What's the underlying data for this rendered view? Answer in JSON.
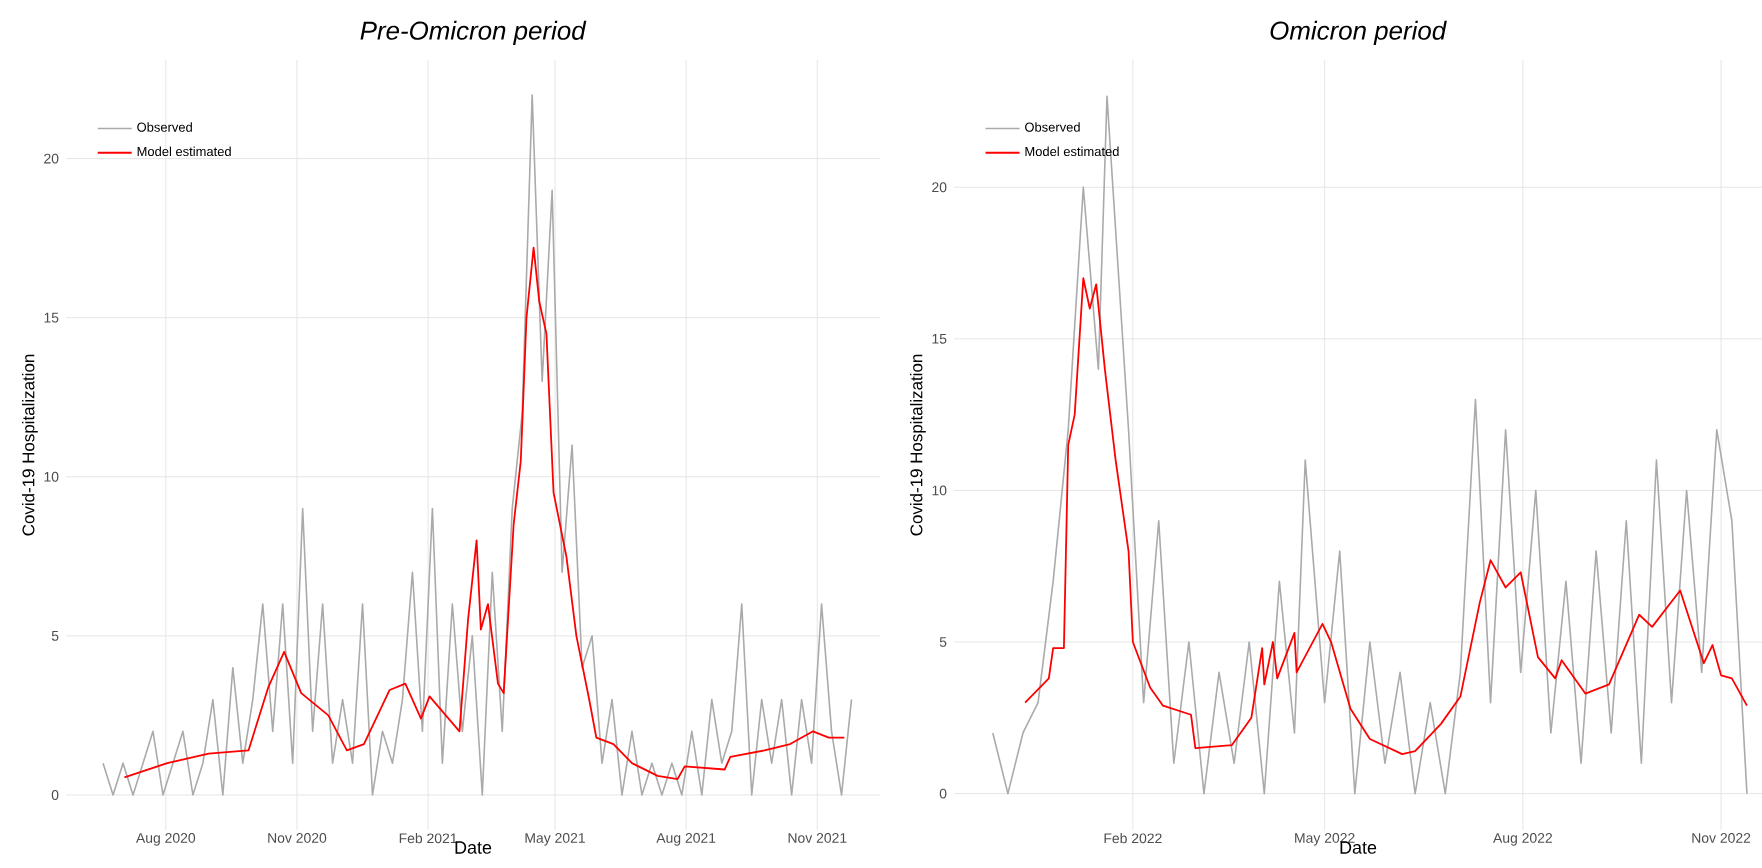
{
  "chart_data": [
    {
      "type": "line",
      "title": "*Pre-Omicron period*",
      "xlabel": "Date",
      "ylabel": "Covid-19 Hospitalization",
      "xlim": [
        "2020-05-23",
        "2021-12-15"
      ],
      "ylim": [
        -1.1,
        23.1
      ],
      "xticks": [
        {
          "value": "2020-08-01",
          "label": "Aug 2020"
        },
        {
          "value": "2020-11-01",
          "label": "Nov 2020"
        },
        {
          "value": "2021-02-01",
          "label": "Feb 2021"
        },
        {
          "value": "2021-05-01",
          "label": "May 2021"
        },
        {
          "value": "2021-08-01",
          "label": "Aug 2021"
        },
        {
          "value": "2021-11-01",
          "label": "Nov 2021"
        }
      ],
      "yticks": [
        0,
        5,
        10,
        15,
        20
      ],
      "grid": true,
      "legend": "top left",
      "series": [
        {
          "name": "Observed",
          "color": "#aaaaaa",
          "x": [
            "2020-06-18",
            "2020-06-25",
            "2020-07-02",
            "2020-07-09",
            "2020-07-16",
            "2020-07-23",
            "2020-07-30",
            "2020-08-06",
            "2020-08-13",
            "2020-08-20",
            "2020-08-27",
            "2020-09-03",
            "2020-09-10",
            "2020-09-17",
            "2020-09-24",
            "2020-10-01",
            "2020-10-08",
            "2020-10-15",
            "2020-10-22",
            "2020-10-29",
            "2020-11-05",
            "2020-11-12",
            "2020-11-19",
            "2020-11-26",
            "2020-12-03",
            "2020-12-10",
            "2020-12-17",
            "2020-12-24",
            "2020-12-31",
            "2021-01-07",
            "2021-01-14",
            "2021-01-21",
            "2021-01-28",
            "2021-02-04",
            "2021-02-11",
            "2021-02-18",
            "2021-02-25",
            "2021-03-04",
            "2021-03-11",
            "2021-03-18",
            "2021-03-25",
            "2021-04-01",
            "2021-04-08",
            "2021-04-15",
            "2021-04-22",
            "2021-04-29",
            "2021-05-06",
            "2021-05-13",
            "2021-05-20",
            "2021-05-27",
            "2021-06-03",
            "2021-06-10",
            "2021-06-17",
            "2021-06-24",
            "2021-07-01",
            "2021-07-08",
            "2021-07-15",
            "2021-07-22",
            "2021-07-29",
            "2021-08-05",
            "2021-08-12",
            "2021-08-19",
            "2021-08-26",
            "2021-09-02",
            "2021-09-09",
            "2021-09-16",
            "2021-09-23",
            "2021-09-30",
            "2021-10-07",
            "2021-10-14",
            "2021-10-21",
            "2021-10-28",
            "2021-11-04",
            "2021-11-11",
            "2021-11-18",
            "2021-11-25"
          ],
          "values": [
            1,
            0,
            1,
            0,
            1,
            2,
            0,
            1,
            2,
            0,
            1,
            3,
            0,
            4,
            1,
            3,
            6,
            2,
            6,
            1,
            9,
            2,
            6,
            1,
            3,
            1,
            6,
            0,
            2,
            1,
            3,
            7,
            2,
            9,
            1,
            6,
            2,
            5,
            0,
            7,
            2,
            9,
            12,
            22,
            13,
            19,
            7,
            11,
            4,
            5,
            1,
            3,
            0,
            2,
            0,
            1,
            0,
            1,
            0,
            2,
            0,
            3,
            1,
            2,
            6,
            0,
            3,
            1,
            3,
            0,
            3,
            1,
            6,
            2,
            0,
            3
          ]
        },
        {
          "name": "Model estimated",
          "color": "#ff0000",
          "x": [
            "2020-07-03",
            "2020-08-02",
            "2020-08-31",
            "2020-09-28",
            "2020-10-12",
            "2020-10-23",
            "2020-11-04",
            "2020-11-23",
            "2020-12-06",
            "2020-12-18",
            "2021-01-05",
            "2021-01-16",
            "2021-01-27",
            "2021-02-02",
            "2021-02-23",
            "2021-03-01",
            "2021-03-07",
            "2021-03-10",
            "2021-03-15",
            "2021-03-22",
            "2021-03-26",
            "2021-04-02",
            "2021-04-07",
            "2021-04-11",
            "2021-04-16",
            "2021-04-20",
            "2021-04-25",
            "2021-04-30",
            "2021-05-09",
            "2021-05-16",
            "2021-05-25",
            "2021-05-30",
            "2021-06-11",
            "2021-06-24",
            "2021-07-12",
            "2021-07-26",
            "2021-07-31",
            "2021-08-28",
            "2021-09-01",
            "2021-09-25",
            "2021-10-13",
            "2021-10-29",
            "2021-11-09",
            "2021-11-20"
          ],
          "values": [
            0.55,
            1.0,
            1.3,
            1.4,
            3.4,
            4.5,
            3.2,
            2.5,
            1.4,
            1.6,
            3.3,
            3.5,
            2.4,
            3.1,
            2.0,
            5.5,
            8.0,
            5.2,
            6.0,
            3.5,
            3.2,
            8.5,
            10.5,
            15,
            17.2,
            15.5,
            14.5,
            9.5,
            7.5,
            5,
            3.0,
            1.8,
            1.6,
            1.0,
            0.6,
            0.5,
            0.9,
            0.8,
            1.2,
            1.4,
            1.6,
            2.0,
            1.8,
            1.8
          ]
        }
      ]
    },
    {
      "type": "line",
      "title": "*Omicron period*",
      "xlabel": "Date",
      "ylabel": "Covid-19 Hospitalization",
      "xlim": [
        "2021-11-10",
        "2022-11-20"
      ],
      "ylim": [
        -1.2,
        24.2
      ],
      "xticks": [
        {
          "value": "2022-02-01",
          "label": "Feb 2022"
        },
        {
          "value": "2022-05-01",
          "label": "May 2022"
        },
        {
          "value": "2022-08-01",
          "label": "Aug 2022"
        },
        {
          "value": "2022-11-01",
          "label": "Nov 2022"
        }
      ],
      "yticks": [
        0,
        5,
        10,
        15,
        20
      ],
      "grid": true,
      "legend": "top left",
      "series": [
        {
          "name": "Observed",
          "color": "#aaaaaa",
          "x": [
            "2021-11-28",
            "2021-12-05",
            "2021-12-12",
            "2021-12-19",
            "2021-12-26",
            "2022-01-02",
            "2022-01-09",
            "2022-01-16",
            "2022-01-20",
            "2022-01-30",
            "2022-02-06",
            "2022-02-13",
            "2022-02-20",
            "2022-02-27",
            "2022-03-06",
            "2022-03-13",
            "2022-03-20",
            "2022-03-27",
            "2022-04-03",
            "2022-04-10",
            "2022-04-17",
            "2022-04-22",
            "2022-05-01",
            "2022-05-08",
            "2022-05-15",
            "2022-05-22",
            "2022-05-29",
            "2022-06-05",
            "2022-06-12",
            "2022-06-19",
            "2022-06-26",
            "2022-07-03",
            "2022-07-10",
            "2022-07-17",
            "2022-07-24",
            "2022-07-31",
            "2022-08-07",
            "2022-08-14",
            "2022-08-21",
            "2022-08-28",
            "2022-09-04",
            "2022-09-11",
            "2022-09-18",
            "2022-09-25",
            "2022-10-02",
            "2022-10-09",
            "2022-10-16",
            "2022-10-23",
            "2022-10-30",
            "2022-11-06",
            "2022-11-13"
          ],
          "values": [
            2,
            0,
            2,
            3,
            7,
            12,
            20,
            14,
            23,
            12,
            3,
            9,
            1,
            5,
            0,
            4,
            1,
            5,
            0,
            7,
            2,
            11,
            3,
            8,
            0,
            5,
            1,
            4,
            0,
            3,
            0,
            4,
            13,
            3,
            12,
            4,
            10,
            2,
            7,
            1,
            8,
            2,
            9,
            1,
            11,
            3,
            10,
            4,
            12,
            9,
            0
          ]
        },
        {
          "name": "Model estimated",
          "color": "#ff0000",
          "x": [
            "2021-12-13",
            "2021-12-24",
            "2021-12-26",
            "2021-12-31",
            "2022-01-02",
            "2022-01-05",
            "2022-01-09",
            "2022-01-12",
            "2022-01-15",
            "2022-01-19",
            "2022-01-24",
            "2022-01-30",
            "2022-02-01",
            "2022-02-09",
            "2022-02-15",
            "2022-02-28",
            "2022-03-02",
            "2022-03-19",
            "2022-03-28",
            "2022-04-02",
            "2022-04-03",
            "2022-04-07",
            "2022-04-09",
            "2022-04-17",
            "2022-04-18",
            "2022-04-30",
            "2022-05-04",
            "2022-05-13",
            "2022-05-22",
            "2022-06-06",
            "2022-06-12",
            "2022-06-24",
            "2022-07-03",
            "2022-07-12",
            "2022-07-17",
            "2022-07-24",
            "2022-07-31",
            "2022-08-08",
            "2022-08-16",
            "2022-08-19",
            "2022-08-30",
            "2022-09-10",
            "2022-09-24",
            "2022-09-30",
            "2022-10-13",
            "2022-10-24",
            "2022-10-28",
            "2022-11-01",
            "2022-11-06",
            "2022-11-13"
          ],
          "values": [
            3.0,
            3.8,
            4.8,
            4.8,
            11.5,
            12.5,
            17.0,
            16.0,
            16.8,
            14,
            11,
            8,
            5.0,
            3.5,
            2.9,
            2.6,
            1.5,
            1.6,
            2.5,
            4.8,
            3.6,
            5.0,
            3.8,
            5.3,
            4.0,
            5.6,
            5.0,
            2.8,
            1.8,
            1.3,
            1.4,
            2.3,
            3.2,
            6.3,
            7.7,
            6.8,
            7.3,
            4.5,
            3.8,
            4.4,
            3.3,
            3.6,
            5.9,
            5.5,
            6.7,
            4.3,
            4.9,
            3.9,
            3.8,
            2.9
          ]
        }
      ]
    }
  ]
}
